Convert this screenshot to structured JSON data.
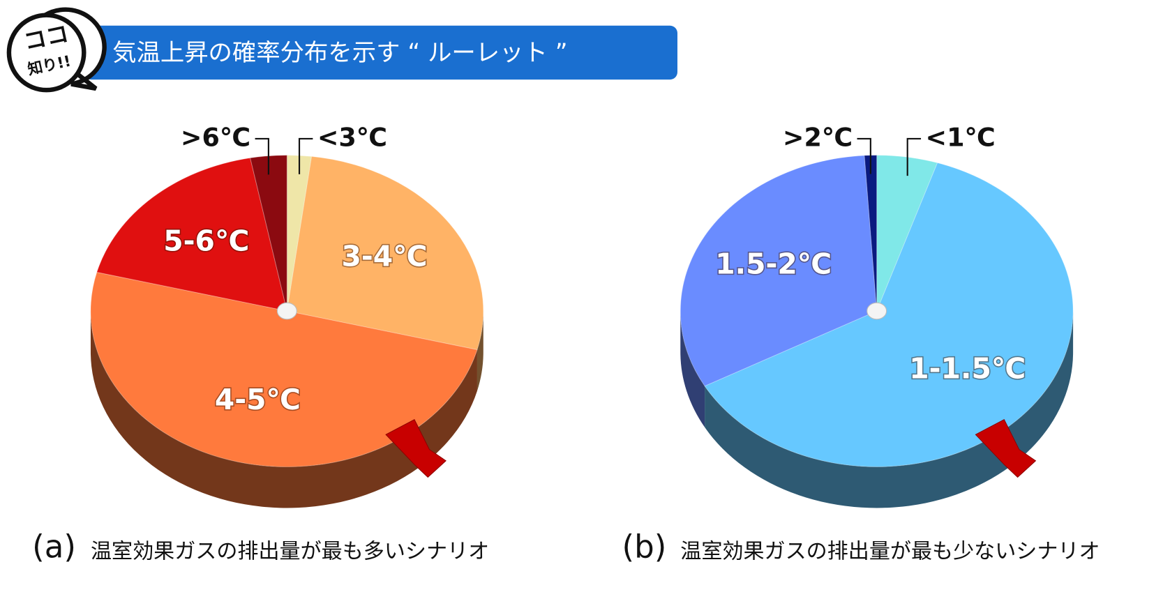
{
  "header": {
    "badge": [
      "ココ",
      "知り!!"
    ],
    "title": "気温上昇の確率分布を示す “ ルーレット ”"
  },
  "chart_data": [
    {
      "type": "pie",
      "categories": [
        "<3℃",
        "3-4℃",
        "4-5℃",
        "5-6℃",
        ">6℃"
      ],
      "values": [
        2,
        27,
        50,
        18,
        3
      ],
      "colors": [
        "#efe6a8",
        "#ffb366",
        "#ff7a3d",
        "#e01010",
        "#8b0a10"
      ],
      "caption": {
        "label": "(a)",
        "text": "温室効果ガスの排出量が最も多いシナリオ"
      }
    },
    {
      "type": "pie",
      "categories": [
        "<1℃",
        "1-1.5℃",
        "1.5-2℃",
        ">2℃"
      ],
      "values": [
        5,
        62,
        32,
        1
      ],
      "colors": [
        "#80e8e8",
        "#66c8ff",
        "#6a8cff",
        "#0a1a80"
      ],
      "caption": {
        "label": "(b)",
        "text": "温室効果ガスの排出量が最も少ないシナリオ"
      }
    }
  ]
}
